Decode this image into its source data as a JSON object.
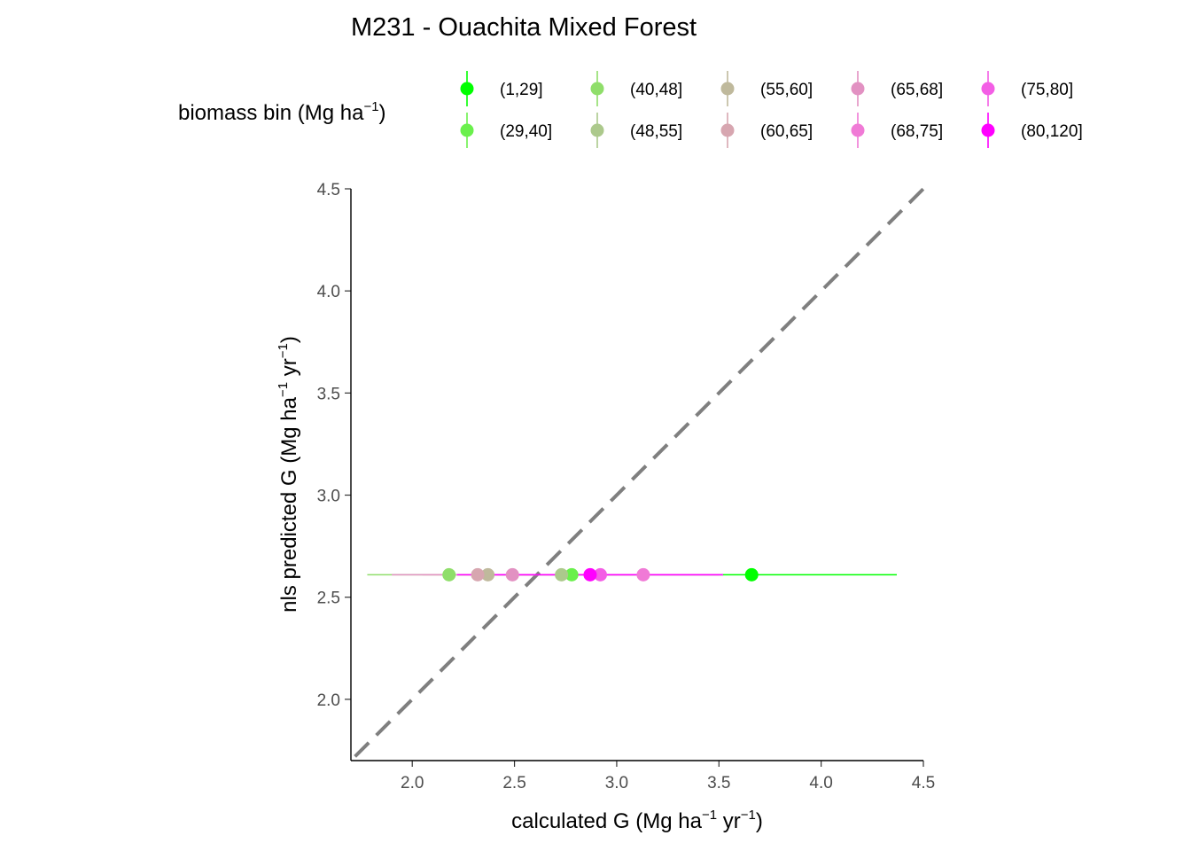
{
  "chart_data": {
    "type": "scatter",
    "title": "M231 - Ouachita Mixed Forest",
    "xlabel": {
      "main": "calculated G (Mg ha",
      "sup1": "−1",
      "mid": " yr",
      "sup2": "−1",
      "end": ")"
    },
    "ylabel": {
      "main": "nls predicted G (Mg ha",
      "sup1": "−1",
      "mid": " yr",
      "sup2": "−1",
      "end": ")"
    },
    "xlim": [
      1.7,
      4.5
    ],
    "ylim": [
      1.7,
      4.5
    ],
    "x_ticks": [
      2.0,
      2.5,
      3.0,
      3.5,
      4.0,
      4.5
    ],
    "y_ticks": [
      2.0,
      2.5,
      3.0,
      3.5,
      4.0,
      4.5
    ],
    "x_tick_labels": [
      "2.0",
      "2.5",
      "3.0",
      "3.5",
      "4.0",
      "4.5"
    ],
    "y_tick_labels": [
      "2.0",
      "2.5",
      "3.0",
      "3.5",
      "4.0",
      "4.5"
    ],
    "reference_line": {
      "type": "identity",
      "style": "dashed",
      "color": "#7f7f7f"
    },
    "legend": {
      "title": {
        "main": "biomass bin (Mg ha",
        "sup": "−1",
        "end": ")"
      },
      "placement": "top"
    },
    "series": [
      {
        "name": "(1,29]",
        "color": "#00ff00",
        "x": 3.66,
        "y": 2.61,
        "xerr": [
          2.95,
          4.37
        ]
      },
      {
        "name": "(29,40]",
        "color": "#6af04c",
        "x": 2.78,
        "y": 2.61,
        "xerr": [
          2.55,
          3.0
        ]
      },
      {
        "name": "(40,48]",
        "color": "#8fde6a",
        "x": 2.18,
        "y": 2.61,
        "xerr": [
          1.78,
          2.6
        ]
      },
      {
        "name": "(48,55]",
        "color": "#acc98c",
        "x": 2.73,
        "y": 2.61,
        "xerr": [
          2.5,
          2.96
        ]
      },
      {
        "name": "(55,60]",
        "color": "#bfb99c",
        "x": 2.37,
        "y": 2.61,
        "xerr": [
          2.15,
          2.6
        ]
      },
      {
        "name": "(60,65]",
        "color": "#d7a6b0",
        "x": 2.32,
        "y": 2.61,
        "xerr": [
          2.05,
          2.6
        ]
      },
      {
        "name": "(65,68]",
        "color": "#e291c2",
        "x": 2.49,
        "y": 2.61,
        "xerr": [
          1.9,
          3.08
        ]
      },
      {
        "name": "(68,75]",
        "color": "#f07ad6",
        "x": 3.13,
        "y": 2.61,
        "xerr": [
          2.75,
          3.5
        ]
      },
      {
        "name": "(75,80]",
        "color": "#f35ee5",
        "x": 2.92,
        "y": 2.61,
        "xerr": [
          2.3,
          3.52
        ]
      },
      {
        "name": "(80,120]",
        "color": "#ff00ff",
        "x": 2.87,
        "y": 2.61,
        "xerr": [
          2.22,
          3.52
        ]
      }
    ]
  }
}
